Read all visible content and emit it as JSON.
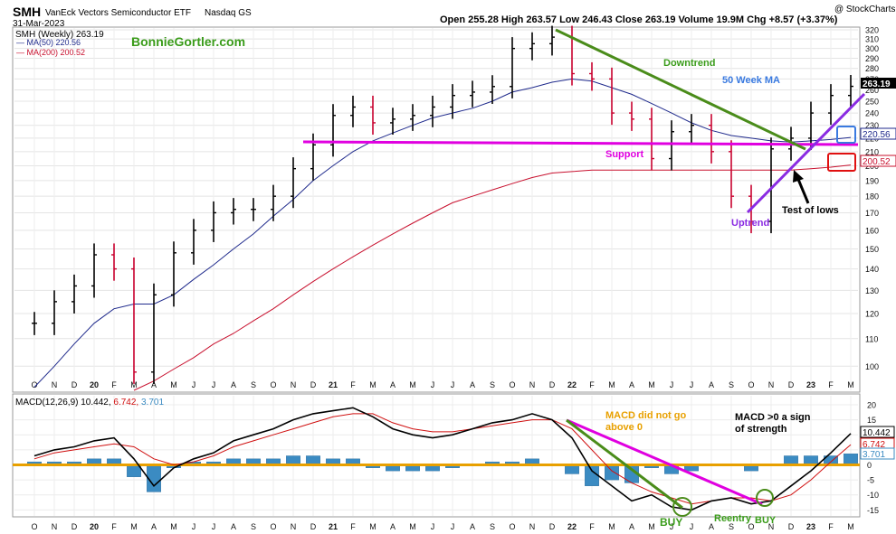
{
  "header": {
    "symbol": "SMH",
    "name": "VanEck Vectors Semiconductor ETF",
    "exchange": "Nasdaq GS",
    "date": "31-Mar-2023",
    "credit": "@ StockCharts.com",
    "ohlc_text": "Open 255.28  High 263.57  Low 246.43  Close 263.19  Volume 19.9M  Chg +8.57 (+3.37%)",
    "watermark": "BonnieGortler.com"
  },
  "legend": {
    "price": "SMH (Weekly) 263.19",
    "ma50": "MA(50) 220.56",
    "ma200": "MA(200) 200.52",
    "macd_label": "MACD(12,26,9)",
    "macd_val": "10.442,",
    "signal_val": "6.742,",
    "hist_val": "3.701"
  },
  "annotations": {
    "downtrend": "Downtrend",
    "ma50wk": "50 Week MA",
    "support": "Support",
    "uptrend": "Uptrend",
    "test_lows": "Test of lows",
    "macd_no_zero_1": "MACD did not go",
    "macd_no_zero_2": "above 0",
    "macd_strength_1": "MACD >0 a sign",
    "macd_strength_2": "of strength",
    "buy1": "BUY",
    "reentry": "Reentry",
    "buy2": "BUY"
  },
  "colors": {
    "up": "#000000",
    "down": "#c8002e",
    "ma50": "#1f2a8c",
    "ma200": "#c8102e",
    "support": "#e000e0",
    "downtrend": "#4a8c1a",
    "uptrend": "#8a2be2",
    "macd": "#000000",
    "signal": "#d01010",
    "hist": "#3b8bc2",
    "zero": "#e8a000"
  },
  "badges": {
    "last": "263.19",
    "ma50": "220.56",
    "ma200": "200.52",
    "macd": "10.442",
    "signal": "6.742",
    "hist": "3.701"
  },
  "chart_data": [
    {
      "type": "line",
      "title": "SMH VanEck Vectors Semiconductor ETF Nasdaq GS",
      "x": [
        "O",
        "N",
        "D",
        "20",
        "F",
        "M",
        "A",
        "M",
        "J",
        "J",
        "A",
        "S",
        "O",
        "N",
        "D",
        "21",
        "F",
        "M",
        "A",
        "M",
        "J",
        "J",
        "A",
        "S",
        "O",
        "N",
        "D",
        "22",
        "F",
        "M",
        "A",
        "M",
        "J",
        "J",
        "A",
        "S",
        "O",
        "N",
        "D",
        "23",
        "F",
        "M"
      ],
      "y_ticks": [
        100,
        110,
        120,
        130,
        140,
        150,
        160,
        170,
        180,
        190,
        200,
        210,
        220,
        230,
        240,
        250,
        260,
        270,
        280,
        290,
        300,
        310,
        320
      ],
      "ylim": [
        92,
        322
      ],
      "scale": "log",
      "series": [
        {
          "name": "SMH (Weekly)",
          "values": [
            116,
            125,
            132,
            147,
            140,
            98,
            128,
            148,
            160,
            170,
            172,
            172,
            180,
            198,
            215,
            238,
            245,
            232,
            235,
            238,
            245,
            255,
            258,
            263,
            300,
            305,
            312,
            275,
            270,
            240,
            235,
            205,
            225,
            230,
            210,
            180,
            165,
            212,
            220,
            240,
            255,
            263.19
          ]
        },
        {
          "name": "MA(50)",
          "values": [
            93,
            100,
            108,
            116,
            122,
            124,
            124,
            128,
            135,
            142,
            150,
            158,
            168,
            178,
            190,
            200,
            210,
            218,
            224,
            230,
            236,
            240,
            244,
            250,
            258,
            262,
            267,
            270,
            268,
            262,
            256,
            248,
            240,
            232,
            226,
            222,
            220,
            218,
            217,
            218,
            219,
            220.56
          ]
        },
        {
          "name": "MA(200)",
          "values": [
            null,
            null,
            null,
            null,
            null,
            92,
            95,
            99,
            103,
            108,
            112,
            117,
            122,
            128,
            134,
            140,
            146,
            152,
            158,
            164,
            170,
            176,
            180,
            184,
            188,
            192,
            195,
            196,
            197,
            197,
            197,
            197,
            197,
            197,
            197,
            197,
            197,
            197,
            197,
            198,
            199,
            200.52
          ]
        }
      ],
      "annotations": [
        "Downtrend",
        "50 Week MA",
        "Support",
        "Uptrend",
        "Test of lows"
      ]
    },
    {
      "type": "line",
      "title": "MACD(12,26,9)",
      "x": [
        "O",
        "N",
        "D",
        "20",
        "F",
        "M",
        "A",
        "M",
        "J",
        "J",
        "A",
        "S",
        "O",
        "N",
        "D",
        "21",
        "F",
        "M",
        "A",
        "M",
        "J",
        "J",
        "A",
        "S",
        "O",
        "N",
        "D",
        "22",
        "F",
        "M",
        "A",
        "M",
        "J",
        "J",
        "A",
        "S",
        "O",
        "N",
        "D",
        "23",
        "F",
        "M"
      ],
      "y_ticks": [
        -15,
        -10,
        -5,
        0,
        5,
        10,
        15,
        20
      ],
      "ylim": [
        -17,
        23
      ],
      "series": [
        {
          "name": "MACD",
          "values": [
            3,
            5,
            6,
            8,
            9,
            2,
            -7,
            -1,
            2,
            4,
            8,
            10,
            12,
            15,
            17,
            18,
            19,
            16,
            12,
            10,
            9,
            10,
            12,
            14,
            15,
            17,
            15,
            9,
            -2,
            -7,
            -12,
            -10,
            -14,
            -15,
            -12,
            -11,
            -13,
            -12,
            -7,
            -2,
            4,
            10.442
          ]
        },
        {
          "name": "Signal",
          "values": [
            2,
            4,
            5,
            6,
            7,
            6,
            2,
            0,
            1,
            3,
            6,
            8,
            10,
            12,
            14,
            16,
            17,
            17,
            14,
            12,
            11,
            11,
            12,
            13,
            14,
            15,
            15,
            12,
            5,
            -2,
            -6,
            -9,
            -11,
            -13,
            -12,
            -11,
            -11,
            -12,
            -10,
            -5,
            1,
            6.742
          ]
        },
        {
          "name": "Histogram",
          "values": [
            1,
            1,
            1,
            2,
            2,
            -4,
            -9,
            -1,
            1,
            1,
            2,
            2,
            2,
            3,
            3,
            2,
            2,
            -1,
            -2,
            -2,
            -2,
            -1,
            0,
            1,
            1,
            2,
            0,
            -3,
            -7,
            -5,
            -6,
            -1,
            -3,
            -2,
            0,
            0,
            -2,
            0,
            3,
            3,
            3,
            3.701
          ]
        }
      ],
      "annotations": [
        "MACD did not go above 0",
        "MACD >0 a sign of strength",
        "BUY",
        "Reentry",
        "BUY"
      ]
    }
  ]
}
